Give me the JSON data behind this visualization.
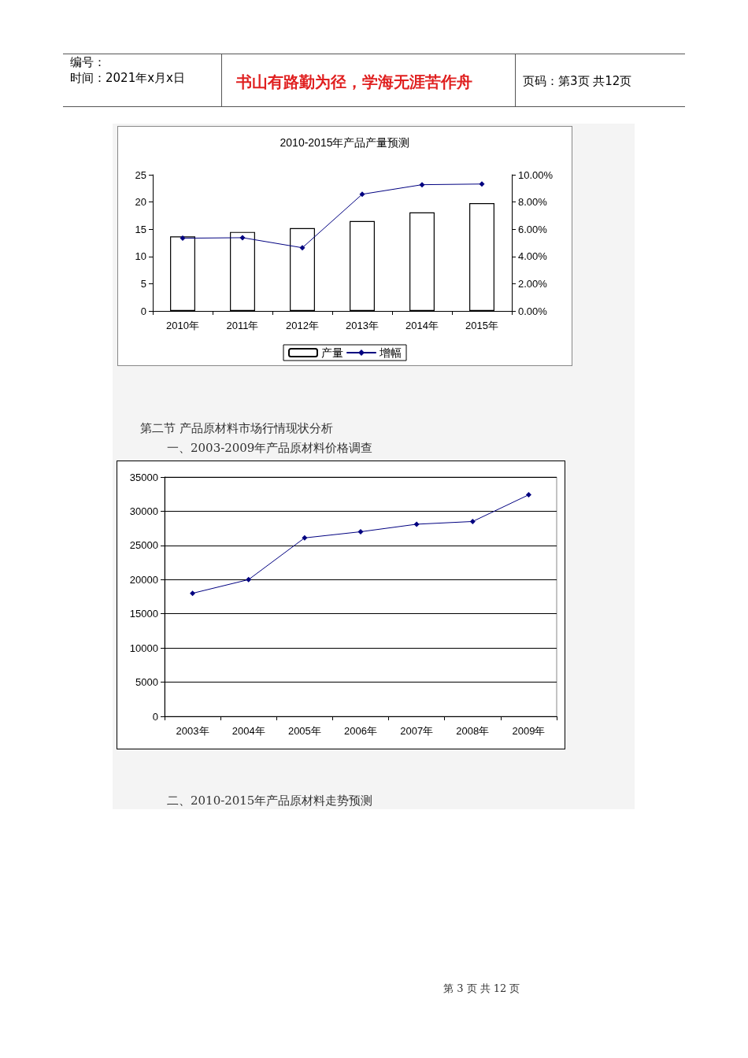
{
  "chart_data": [
    {
      "type": "bar",
      "title": "2010-2015年产品产量预测",
      "annotations": [
        "编号：",
        "时间：2021年x月x日",
        "书山有路勤为径，学海无涯苦作舟",
        "页码：第3页 共12页"
      ],
      "categories": [
        "2010年",
        "2011年",
        "2012年",
        "2013年",
        "2014年",
        "2015年"
      ],
      "series": [
        {
          "name": "产量",
          "color": "#ffffff",
          "values": [
            13.7,
            14.5,
            15.2,
            16.5,
            18.1,
            19.8
          ]
        },
        {
          "name": "增幅",
          "type": "line",
          "axis": "y2",
          "color": "#000080",
          "values": [
            5.34,
            5.38,
            4.64,
            8.57,
            9.27,
            9.32
          ]
        }
      ],
      "ylim": [
        0,
        25
      ],
      "yticks": [
        0,
        5,
        10,
        15,
        20,
        25
      ],
      "y2lim": [
        0,
        10
      ],
      "y2ticks": [
        {
          "value": 0,
          "label": "0.00%"
        },
        {
          "value": 2,
          "label": "2.00%"
        },
        {
          "value": 4,
          "label": "4.00%"
        },
        {
          "value": 6,
          "label": "6.00%"
        },
        {
          "value": 8,
          "label": "8.00%"
        },
        {
          "value": 10,
          "label": "10.00%"
        }
      ],
      "grid": false,
      "legend": "bottom",
      "marker": "diamond",
      "line_style": "solid"
    },
    {
      "type": "line",
      "annotations": [
        "第二节 产品原材料市场行情现状分析",
        "一、2003-2009年产品原材料价格调查",
        "二、2010-2015年产品原材料走势预测",
        "第 3 页 共 12 页"
      ],
      "categories": [
        "2003年",
        "2004年",
        "2005年",
        "2006年",
        "2007年",
        "2008年",
        "2009年"
      ],
      "series": [
        {
          "color": "#000080",
          "values": [
            18000,
            20000,
            26100,
            27000,
            28100,
            28500,
            32400
          ]
        }
      ],
      "ylim": [
        0,
        35000
      ],
      "yticks": [
        0,
        5000,
        10000,
        15000,
        20000,
        25000,
        30000,
        35000
      ],
      "grid": "y",
      "legend": false,
      "marker": "diamond",
      "line_style": "solid"
    }
  ]
}
